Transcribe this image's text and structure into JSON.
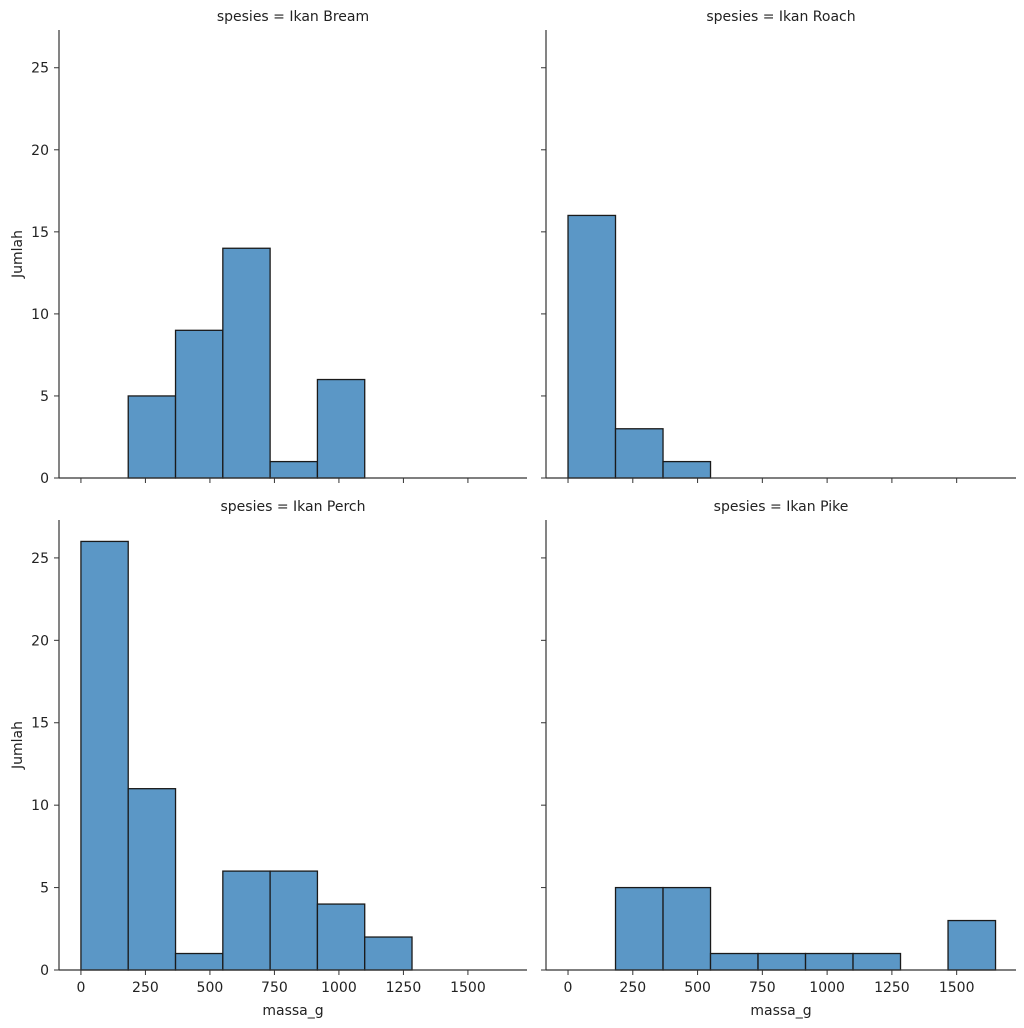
{
  "chart_data": [
    {
      "type": "bar",
      "title": "spesies = Ikan Bream",
      "xlabel": "",
      "ylabel": "Jumlah",
      "bin_edges": [
        0,
        183.3,
        366.7,
        550,
        733.3,
        916.7,
        1100,
        1283.3,
        1466.7,
        1650
      ],
      "values": [
        0,
        5,
        9,
        14,
        1,
        6,
        0,
        0,
        0
      ],
      "xticks": [
        0,
        250,
        500,
        750,
        1000,
        1250,
        1500
      ],
      "yticks": [
        0,
        5,
        10,
        15,
        20,
        25
      ],
      "show_xticklabels": false,
      "show_yticklabels": true
    },
    {
      "type": "bar",
      "title": "spesies = Ikan Roach",
      "xlabel": "",
      "ylabel": "",
      "bin_edges": [
        0,
        183.3,
        366.7,
        550,
        733.3,
        916.7,
        1100,
        1283.3,
        1466.7,
        1650
      ],
      "values": [
        16,
        3,
        1,
        0,
        0,
        0,
        0,
        0,
        0
      ],
      "xticks": [
        0,
        250,
        500,
        750,
        1000,
        1250,
        1500
      ],
      "yticks": [
        0,
        5,
        10,
        15,
        20,
        25
      ],
      "show_xticklabels": false,
      "show_yticklabels": false
    },
    {
      "type": "bar",
      "title": "spesies = Ikan Perch",
      "xlabel": "massa_g",
      "ylabel": "Jumlah",
      "bin_edges": [
        0,
        183.3,
        366.7,
        550,
        733.3,
        916.7,
        1100,
        1283.3,
        1466.7,
        1650
      ],
      "values": [
        26,
        11,
        1,
        6,
        6,
        4,
        2,
        0,
        0
      ],
      "xticks": [
        0,
        250,
        500,
        750,
        1000,
        1250,
        1500
      ],
      "yticks": [
        0,
        5,
        10,
        15,
        20,
        25
      ],
      "show_xticklabels": true,
      "show_yticklabels": true
    },
    {
      "type": "bar",
      "title": "spesies = Ikan Pike",
      "xlabel": "massa_g",
      "ylabel": "",
      "bin_edges": [
        0,
        183.3,
        366.7,
        550,
        733.3,
        916.7,
        1100,
        1283.3,
        1466.7,
        1650
      ],
      "values": [
        0,
        5,
        5,
        1,
        1,
        1,
        1,
        0,
        3
      ],
      "xticks": [
        0,
        250,
        500,
        750,
        1000,
        1250,
        1500
      ],
      "yticks": [
        0,
        5,
        10,
        15,
        20,
        25
      ],
      "show_xticklabels": true,
      "show_yticklabels": false
    }
  ],
  "xlim": [
    -85,
    1729
  ],
  "ylim": [
    0,
    27.3
  ],
  "colors": {
    "bar_fill": "#5b97c6",
    "bar_edge": "#1a1a1a",
    "axis": "#333333"
  }
}
